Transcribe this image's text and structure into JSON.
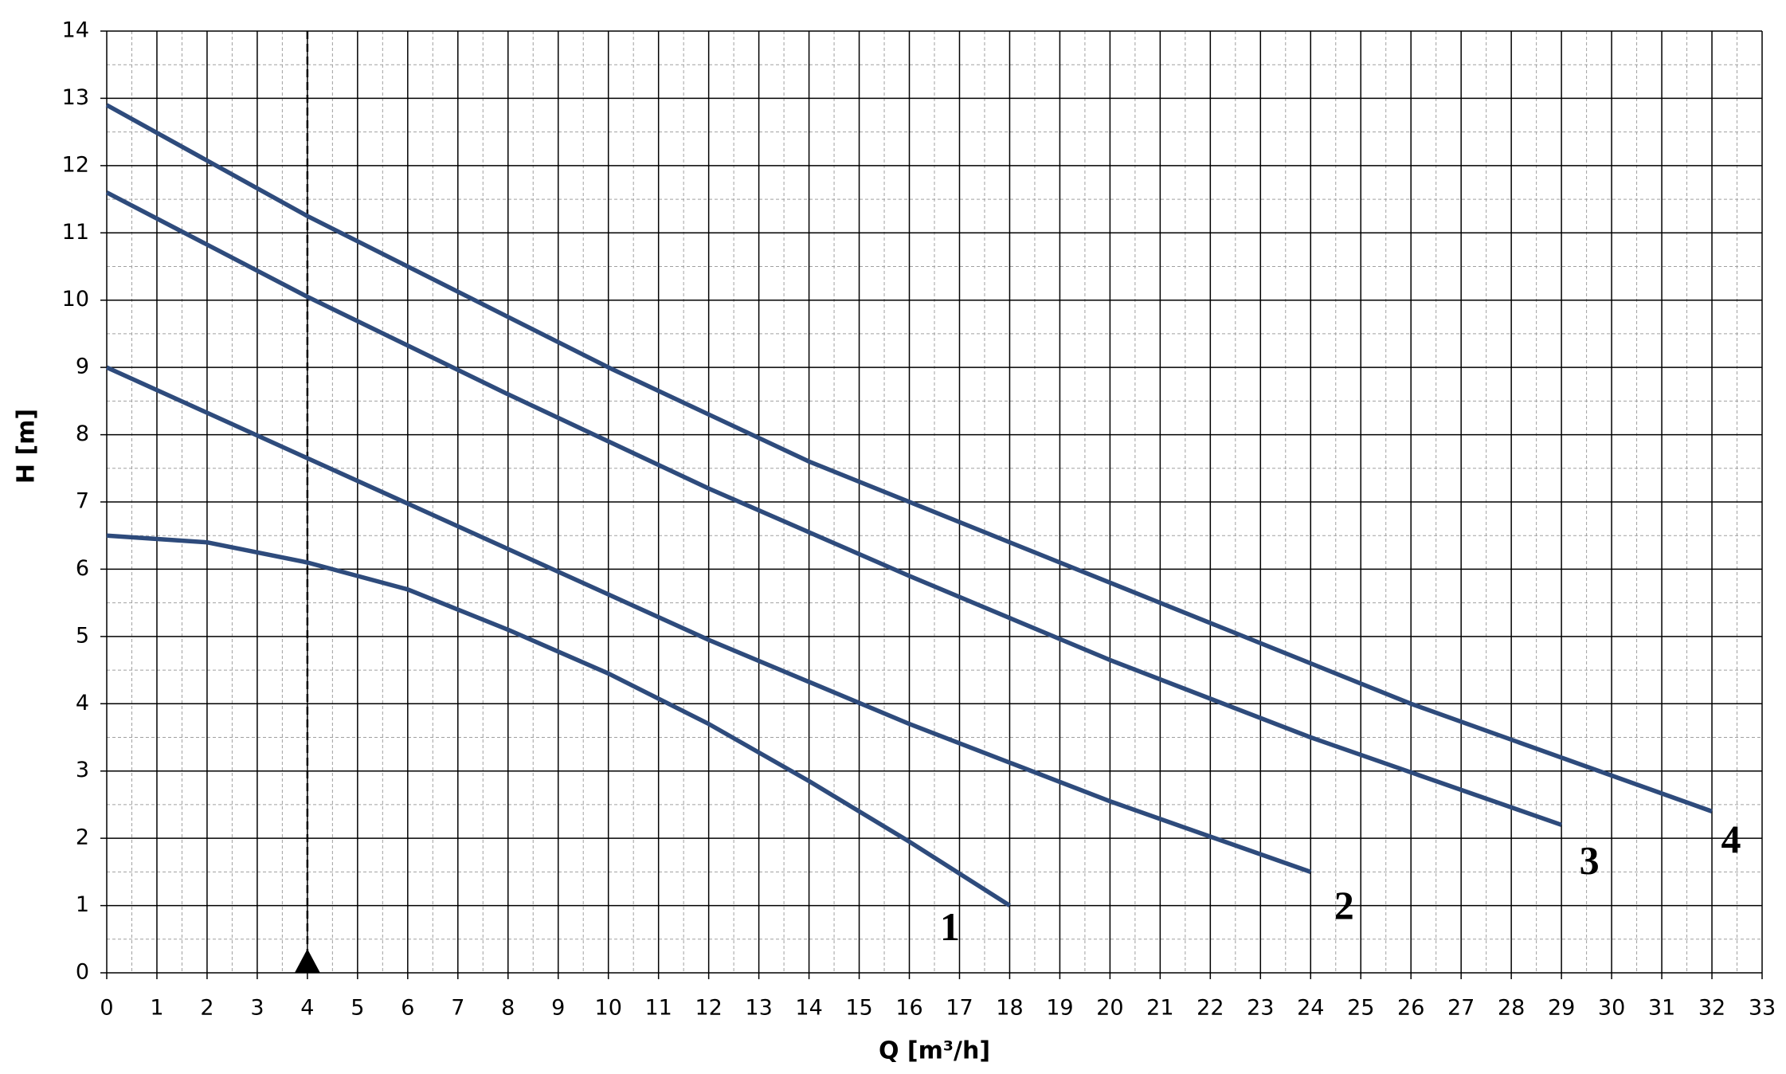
{
  "chart_data": {
    "type": "line",
    "x_label": "Q [m³/h]",
    "y_label": "H [m]",
    "xlim": [
      0,
      33
    ],
    "ylim": [
      0,
      14
    ],
    "xticks": [
      0,
      1,
      2,
      3,
      4,
      5,
      6,
      7,
      8,
      9,
      10,
      11,
      12,
      13,
      14,
      15,
      16,
      17,
      18,
      19,
      20,
      21,
      22,
      23,
      24,
      25,
      26,
      27,
      28,
      29,
      30,
      31,
      32,
      33
    ],
    "yticks": [
      0,
      1,
      2,
      3,
      4,
      5,
      6,
      7,
      8,
      9,
      10,
      11,
      12,
      13,
      14
    ],
    "grid": true,
    "minor_grid": true,
    "reference_x": 4,
    "series": [
      {
        "name": "1",
        "color": "#2e4b7c",
        "x": [
          0,
          2,
          4,
          6,
          8,
          10,
          12,
          14,
          16,
          18
        ],
        "y": [
          6.5,
          6.4,
          6.1,
          5.7,
          5.1,
          4.45,
          3.7,
          2.85,
          1.95,
          1.0
        ]
      },
      {
        "name": "2",
        "color": "#2e4b7c",
        "x": [
          0,
          4,
          8,
          12,
          16,
          20,
          24
        ],
        "y": [
          9.0,
          7.65,
          6.3,
          4.95,
          3.7,
          2.55,
          1.5
        ]
      },
      {
        "name": "3",
        "color": "#2e4b7c",
        "x": [
          0,
          4,
          8,
          12,
          16,
          20,
          24,
          29
        ],
        "y": [
          11.6,
          10.05,
          8.6,
          7.2,
          5.9,
          4.65,
          3.5,
          2.2
        ]
      },
      {
        "name": "4",
        "color": "#2e4b7c",
        "x": [
          0,
          4,
          10,
          14,
          20,
          26,
          32
        ],
        "y": [
          12.9,
          11.25,
          9.0,
          7.6,
          5.8,
          4.0,
          2.4
        ]
      }
    ]
  }
}
